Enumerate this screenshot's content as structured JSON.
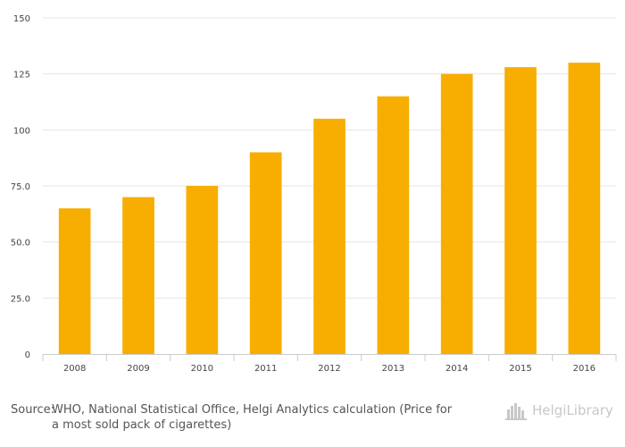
{
  "chart_data": {
    "type": "bar",
    "categories": [
      "2008",
      "2009",
      "2010",
      "2011",
      "2012",
      "2013",
      "2014",
      "2015",
      "2016"
    ],
    "series": [
      {
        "values": [
          65,
          70,
          75,
          90,
          105,
          115,
          125,
          128,
          130
        ]
      }
    ],
    "y_ticks": [
      "0",
      "25.0",
      "50.0",
      "75.0",
      "100",
      "125",
      "150"
    ],
    "y_tick_values": [
      0,
      25,
      50,
      75,
      100,
      125,
      150
    ],
    "ylim": [
      0,
      150
    ],
    "grid": true,
    "bar_color": "#F7AE00",
    "grid_color": "#E6E6E6",
    "axis_color": "#CCCCCC"
  },
  "footer": {
    "source_label": "Source:",
    "source_text": "WHO, National Statistical Office, Helgi Analytics calculation (Price for a most sold pack of cigarettes)"
  },
  "logo": {
    "text": "HelgiLibrary",
    "icon": "helgi-library-buildings-icon"
  }
}
